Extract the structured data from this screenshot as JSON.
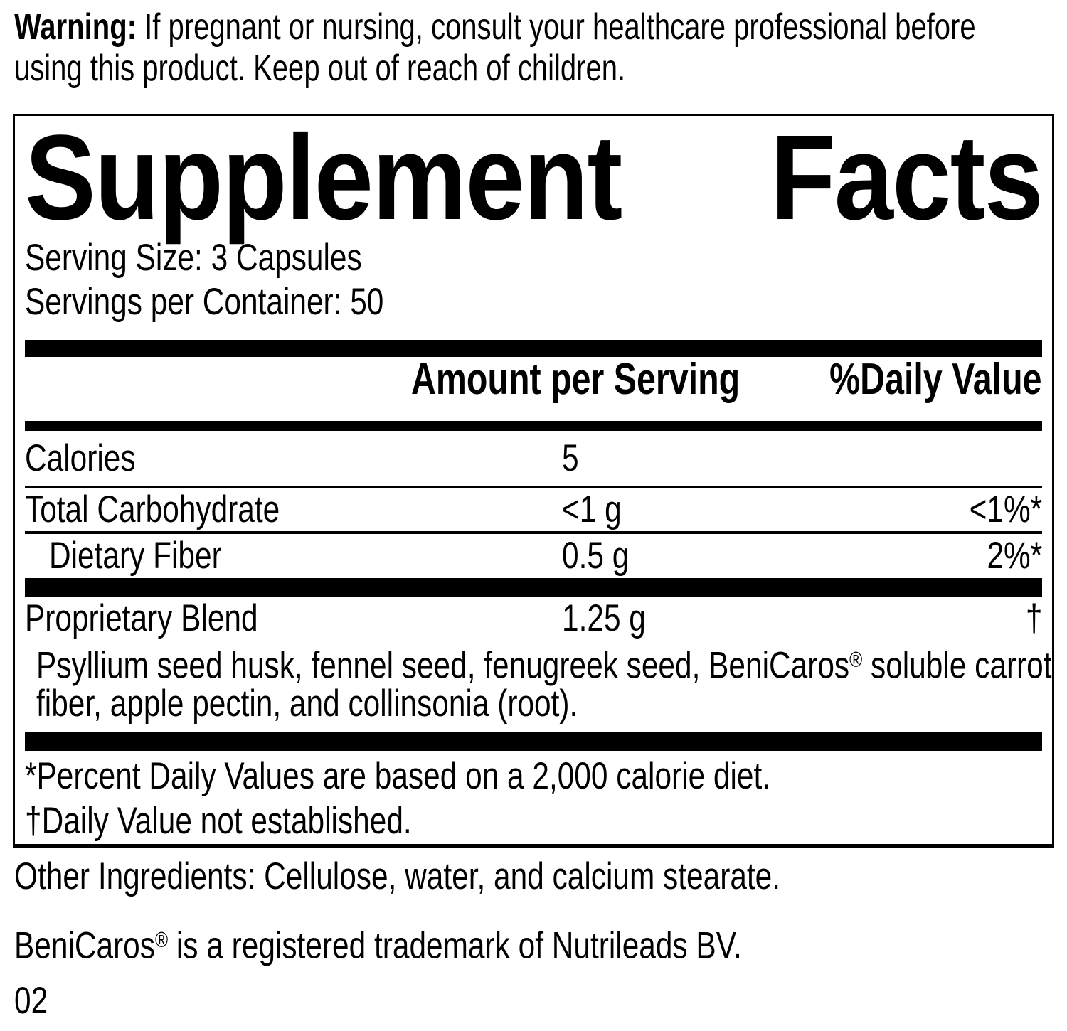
{
  "warning": {
    "label": "Warning:",
    "line1_rest": " If pregnant or nursing, consult your healthcare professional before",
    "line2": "using this product. Keep out of reach of children."
  },
  "panel": {
    "title_word1": "Supplement",
    "title_word2": "Facts",
    "serving_size": "Serving Size: 3 Capsules",
    "servings_per_container": "Servings per Container: 50",
    "header": {
      "amount": "Amount per Serving",
      "daily_value": "%Daily Value"
    },
    "rows": [
      {
        "name": "Calories",
        "amount": "5",
        "dv": ""
      },
      {
        "name": "Total Carbohydrate",
        "amount": "<1 g",
        "dv": "<1%*"
      },
      {
        "name": "Dietary Fiber",
        "amount": "0.5 g",
        "dv": "2%*"
      }
    ],
    "blend": {
      "name": "Proprietary Blend",
      "amount": "1.25 g",
      "dv": "†",
      "desc_line1_pre": "Psyllium seed husk, fennel seed, fenugreek seed, BeniCaros",
      "desc_reg": "®",
      "desc_line1_post": " soluble carrot",
      "desc_line2": "fiber, apple pectin, and collinsonia (root)."
    },
    "footnotes": {
      "line1": "*Percent Daily Values are based on a 2,000 calorie diet.",
      "line2": "†Daily Value not established."
    }
  },
  "other_ingredients": "Other Ingredients: Cellulose, water, and calcium stearate.",
  "trademark": {
    "pre": "BeniCaros",
    "reg": "®",
    "post": " is a registered trademark of Nutrileads BV."
  },
  "footer_code": "02",
  "colors": {
    "ink": "#000000",
    "paper": "#ffffff"
  }
}
